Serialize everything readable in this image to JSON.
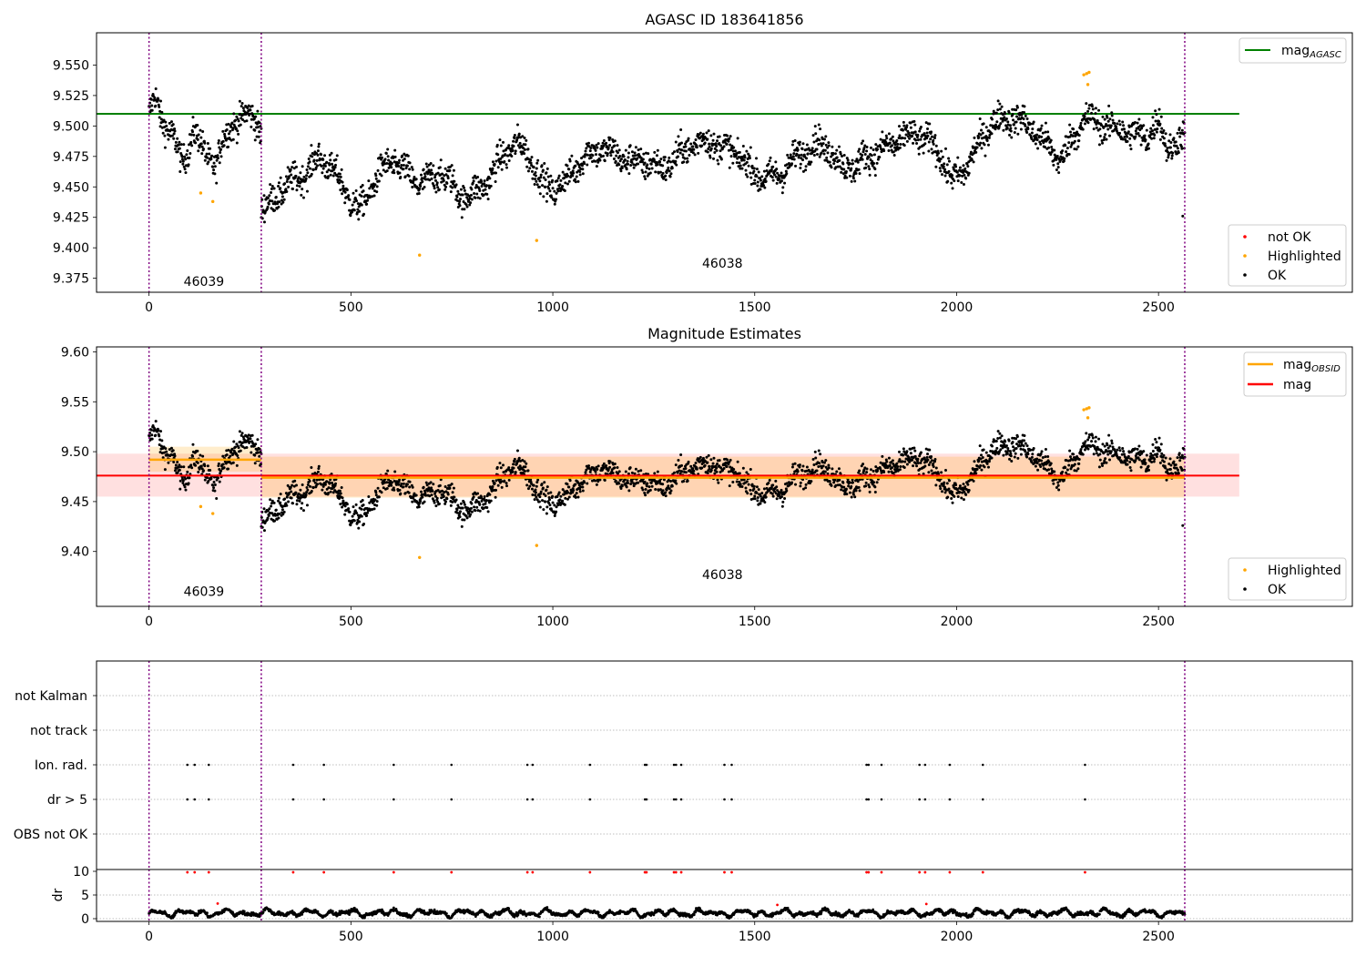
{
  "figure": {
    "panel1_title": "AGASC ID 183641856",
    "panel2_title": "Magnitude Estimates"
  },
  "chart_data": [
    {
      "type": "scatter",
      "title": "AGASC ID 183641856",
      "xlim": [
        -130,
        2980
      ],
      "ylim": [
        9.3635,
        9.5765
      ],
      "xticks": [
        0,
        500,
        1000,
        1500,
        2000,
        2500
      ],
      "yticks": [
        9.375,
        9.4,
        9.425,
        9.45,
        9.475,
        9.5,
        9.525,
        9.55
      ],
      "ytick_labels": [
        "9.375",
        "9.400",
        "9.425",
        "9.450",
        "9.475",
        "9.500",
        "9.525",
        "9.550"
      ],
      "obsid_boundaries": [
        0,
        278,
        2565
      ],
      "obsid_labels": [
        {
          "text": "46039",
          "x": 136,
          "y": 9.3725
        },
        {
          "text": "46038",
          "x": 1420,
          "y": 9.3875
        }
      ],
      "mag_agasc": {
        "value": 9.51,
        "x_range": [
          -130,
          2700
        ],
        "color": "#008000"
      },
      "series": [
        {
          "name": "OK",
          "color": "#000000",
          "segments": [
            {
              "x0": 0,
              "x1": 278,
              "points": [
                [
                  0,
                  9.51
                ],
                [
                  15,
                  9.52
                ],
                [
                  30,
                  9.503
                ],
                [
                  45,
                  9.497
                ],
                [
                  60,
                  9.49
                ],
                [
                  70,
                  9.48
                ],
                [
                  80,
                  9.47
                ],
                [
                  95,
                  9.482
                ],
                [
                  110,
                  9.5
                ],
                [
                  125,
                  9.488
                ],
                [
                  140,
                  9.477
                ],
                [
                  155,
                  9.472
                ],
                [
                  165,
                  9.465
                ],
                [
                  180,
                  9.48
                ],
                [
                  195,
                  9.492
                ],
                [
                  210,
                  9.503
                ],
                [
                  225,
                  9.507
                ],
                [
                  240,
                  9.51
                ],
                [
                  255,
                  9.512
                ],
                [
                  270,
                  9.505
                ],
                [
                  278,
                  9.495
                ]
              ]
            },
            {
              "x0": 278,
              "x1": 2565,
              "points": [
                [
                  278,
                  9.432
                ],
                [
                  300,
                  9.435
                ],
                [
                  330,
                  9.445
                ],
                [
                  360,
                  9.455
                ],
                [
                  390,
                  9.465
                ],
                [
                  420,
                  9.475
                ],
                [
                  440,
                  9.47
                ],
                [
                  460,
                  9.458
                ],
                [
                  480,
                  9.448
                ],
                [
                  500,
                  9.438
                ],
                [
                  520,
                  9.432
                ],
                [
                  540,
                  9.445
                ],
                [
                  560,
                  9.458
                ],
                [
                  580,
                  9.465
                ],
                [
                  600,
                  9.468
                ],
                [
                  630,
                  9.462
                ],
                [
                  660,
                  9.455
                ],
                [
                  690,
                  9.458
                ],
                [
                  720,
                  9.462
                ],
                [
                  750,
                  9.45
                ],
                [
                  770,
                  9.44
                ],
                [
                  790,
                  9.442
                ],
                [
                  810,
                  9.448
                ],
                [
                  830,
                  9.455
                ],
                [
                  850,
                  9.462
                ],
                [
                  870,
                  9.472
                ],
                [
                  890,
                  9.478
                ],
                [
                  910,
                  9.482
                ],
                [
                  930,
                  9.48
                ],
                [
                  950,
                  9.472
                ],
                [
                  970,
                  9.458
                ],
                [
                  1000,
                  9.45
                ],
                [
                  1030,
                  9.452
                ],
                [
                  1060,
                  9.465
                ],
                [
                  1090,
                  9.478
                ],
                [
                  1120,
                  9.485
                ],
                [
                  1150,
                  9.478
                ],
                [
                  1180,
                  9.47
                ],
                [
                  1210,
                  9.468
                ],
                [
                  1240,
                  9.472
                ],
                [
                  1270,
                  9.468
                ],
                [
                  1300,
                  9.472
                ],
                [
                  1330,
                  9.478
                ],
                [
                  1360,
                  9.485
                ],
                [
                  1390,
                  9.49
                ],
                [
                  1420,
                  9.485
                ],
                [
                  1450,
                  9.478
                ],
                [
                  1480,
                  9.465
                ],
                [
                  1510,
                  9.458
                ],
                [
                  1540,
                  9.46
                ],
                [
                  1570,
                  9.465
                ],
                [
                  1600,
                  9.472
                ],
                [
                  1630,
                  9.478
                ],
                [
                  1660,
                  9.485
                ],
                [
                  1690,
                  9.482
                ],
                [
                  1720,
                  9.468
                ],
                [
                  1750,
                  9.465
                ],
                [
                  1780,
                  9.472
                ],
                [
                  1810,
                  9.48
                ],
                [
                  1840,
                  9.488
                ],
                [
                  1870,
                  9.492
                ],
                [
                  1900,
                  9.49
                ],
                [
                  1930,
                  9.485
                ],
                [
                  1960,
                  9.478
                ],
                [
                  1990,
                  9.458
                ],
                [
                  2020,
                  9.465
                ],
                [
                  2050,
                  9.478
                ],
                [
                  2080,
                  9.498
                ],
                [
                  2110,
                  9.508
                ],
                [
                  2140,
                  9.51
                ],
                [
                  2170,
                  9.502
                ],
                [
                  2200,
                  9.49
                ],
                [
                  2230,
                  9.48
                ],
                [
                  2260,
                  9.475
                ],
                [
                  2290,
                  9.495
                ],
                [
                  2320,
                  9.505
                ],
                [
                  2350,
                  9.5
                ],
                [
                  2380,
                  9.498
                ],
                [
                  2410,
                  9.5
                ],
                [
                  2440,
                  9.495
                ],
                [
                  2470,
                  9.49
                ],
                [
                  2500,
                  9.5
                ],
                [
                  2520,
                  9.482
                ],
                [
                  2540,
                  9.488
                ],
                [
                  2565,
                  9.492
                ]
              ]
            }
          ]
        },
        {
          "name": "Highlighted",
          "color": "#ffa500",
          "points": [
            [
              128,
              9.445
            ],
            [
              158,
              9.438
            ],
            [
              670,
              9.394
            ],
            [
              960,
              9.406
            ],
            [
              2315,
              9.542
            ],
            [
              2322,
              9.543
            ],
            [
              2328,
              9.544
            ],
            [
              2325,
              9.534
            ]
          ]
        },
        {
          "name": "not OK",
          "color": "#ff0000",
          "points": []
        }
      ],
      "extra_ok_points": [
        [
          2560,
          9.426
        ]
      ],
      "legend_top": {
        "placement": "upper right",
        "label_main": "mag",
        "label_sub": "AGASC"
      },
      "legend_bottom": {
        "placement": "lower right",
        "entries": [
          "not OK",
          "Highlighted",
          "OK"
        ]
      }
    },
    {
      "type": "scatter",
      "title": "Magnitude Estimates",
      "xlim": [
        -130,
        2980
      ],
      "ylim": [
        9.345,
        9.605
      ],
      "xticks": [
        0,
        500,
        1000,
        1500,
        2000,
        2500
      ],
      "yticks": [
        9.4,
        9.45,
        9.5,
        9.55,
        9.6
      ],
      "ytick_labels": [
        "9.40",
        "9.45",
        "9.50",
        "9.55",
        "9.60"
      ],
      "obsid_labels": [
        {
          "text": "46039",
          "x": 136,
          "y": 9.36
        },
        {
          "text": "46038",
          "x": 1420,
          "y": 9.377
        }
      ],
      "mag": {
        "value": 9.476,
        "band": [
          9.455,
          9.498
        ],
        "x_range": [
          -130,
          2700
        ],
        "color": "#ff0000"
      },
      "mag_obsid": [
        {
          "x0": 0,
          "x1": 278,
          "value": 9.492,
          "band": [
            9.48,
            9.505
          ]
        },
        {
          "x0": 278,
          "x1": 2565,
          "value": 9.474,
          "band": [
            9.454,
            9.495
          ]
        }
      ],
      "legend_top": {
        "placement": "upper right",
        "entries": [
          {
            "label_main": "mag",
            "label_sub": "OBSID",
            "color": "#ffa500"
          },
          {
            "label_main": "mag",
            "label_sub": "",
            "color": "#ff0000"
          }
        ]
      },
      "legend_bottom": {
        "placement": "lower right",
        "entries": [
          "Highlighted",
          "OK"
        ]
      }
    },
    {
      "type": "scatter",
      "title": "",
      "flag_rows": [
        "not Kalman",
        "not track",
        "Ion. rad.",
        "dr > 5",
        "OBS not OK"
      ],
      "flag_points": {
        "Ion. rad.": [
          95,
          113,
          148,
          357,
          433,
          606,
          749,
          937,
          950,
          1092,
          1228,
          1232,
          1300,
          1305,
          1318,
          1425,
          1443,
          1777,
          1782,
          1814,
          1908,
          1922,
          1983,
          2065,
          2318
        ],
        "dr > 5": [
          95,
          113,
          148,
          357,
          433,
          606,
          749,
          937,
          950,
          1092,
          1228,
          1232,
          1300,
          1305,
          1318,
          1425,
          1443,
          1777,
          1782,
          1814,
          1908,
          1922,
          1983,
          2065,
          2318
        ]
      },
      "dr": {
        "ylabel": "dr",
        "yticks": [
          0,
          5,
          10
        ],
        "red_points": [
          [
            95,
            9.8
          ],
          [
            113,
            9.8
          ],
          [
            148,
            9.8
          ],
          [
            357,
            9.8
          ],
          [
            433,
            9.8
          ],
          [
            606,
            9.8
          ],
          [
            749,
            9.8
          ],
          [
            937,
            9.8
          ],
          [
            950,
            9.8
          ],
          [
            1092,
            9.8
          ],
          [
            1228,
            9.8
          ],
          [
            1232,
            9.8
          ],
          [
            1300,
            9.8
          ],
          [
            1305,
            9.8
          ],
          [
            1318,
            9.8
          ],
          [
            1425,
            9.8
          ],
          [
            1443,
            9.8
          ],
          [
            1777,
            9.8
          ],
          [
            1782,
            9.8
          ],
          [
            1814,
            9.8
          ],
          [
            1908,
            9.8
          ],
          [
            1922,
            9.8
          ],
          [
            1983,
            9.8
          ],
          [
            2065,
            9.8
          ],
          [
            2318,
            9.8
          ],
          [
            170,
            3.2
          ],
          [
            1556,
            2.9
          ],
          [
            1925,
            3.1
          ]
        ],
        "baseline_range": [
          0.3,
          2.6
        ]
      },
      "xticks": [
        0,
        500,
        1000,
        1500,
        2000,
        2500
      ]
    }
  ],
  "colors": {
    "ok": "#000000",
    "highlighted": "#ffa500",
    "not_ok": "#ff0000",
    "boundary": "#800080",
    "agasc_line": "#008000",
    "mag_line": "#ff0000",
    "obsid_line": "#ffa500"
  }
}
